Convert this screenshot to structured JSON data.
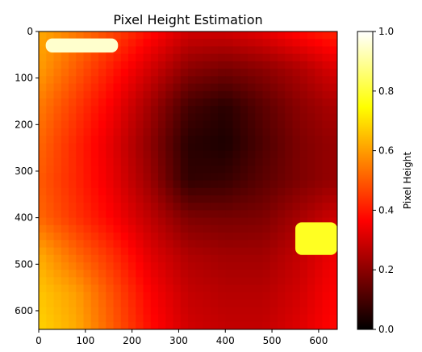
{
  "chart_data": {
    "type": "heatmap",
    "title": "Pixel Height Estimation",
    "xlabel": "",
    "ylabel": "",
    "xlim": [
      0,
      640
    ],
    "ylim": [
      640,
      0
    ],
    "xticks": [
      0,
      100,
      200,
      300,
      400,
      500,
      600
    ],
    "yticks": [
      0,
      100,
      200,
      300,
      400,
      500,
      600
    ],
    "colormap": "hot",
    "colorbar": {
      "label": "Pixel Height",
      "range": [
        0.0,
        1.0
      ],
      "ticks": [
        "0.0",
        "0.2",
        "0.4",
        "0.6",
        "0.8",
        "1.0"
      ]
    },
    "grid": false,
    "z_approx": {
      "x": [
        0,
        80,
        160,
        240,
        320,
        400,
        480,
        560,
        640
      ],
      "y": [
        0,
        80,
        160,
        240,
        320,
        400,
        480,
        560,
        640
      ],
      "values": [
        [
          0.62,
          0.55,
          0.47,
          0.38,
          0.3,
          0.3,
          0.33,
          0.38,
          0.42
        ],
        [
          0.6,
          0.5,
          0.4,
          0.3,
          0.2,
          0.17,
          0.2,
          0.25,
          0.32
        ],
        [
          0.55,
          0.45,
          0.35,
          0.23,
          0.1,
          0.06,
          0.13,
          0.2,
          0.25
        ],
        [
          0.52,
          0.42,
          0.32,
          0.2,
          0.06,
          0.04,
          0.11,
          0.18,
          0.22
        ],
        [
          0.5,
          0.42,
          0.33,
          0.22,
          0.07,
          0.08,
          0.13,
          0.18,
          0.22
        ],
        [
          0.52,
          0.44,
          0.36,
          0.27,
          0.18,
          0.17,
          0.18,
          0.24,
          0.3
        ],
        [
          0.62,
          0.52,
          0.43,
          0.32,
          0.25,
          0.23,
          0.23,
          0.28,
          0.35
        ],
        [
          0.66,
          0.6,
          0.48,
          0.36,
          0.28,
          0.26,
          0.26,
          0.3,
          0.37
        ],
        [
          0.68,
          0.62,
          0.5,
          0.38,
          0.3,
          0.28,
          0.28,
          0.32,
          0.38
        ]
      ]
    },
    "bright_regions": [
      {
        "x_range": [
          15,
          170
        ],
        "y_range": [
          15,
          45
        ],
        "value": 0.95
      },
      {
        "x_range": [
          550,
          640
        ],
        "y_range": [
          410,
          480
        ],
        "value": 0.78
      }
    ]
  }
}
